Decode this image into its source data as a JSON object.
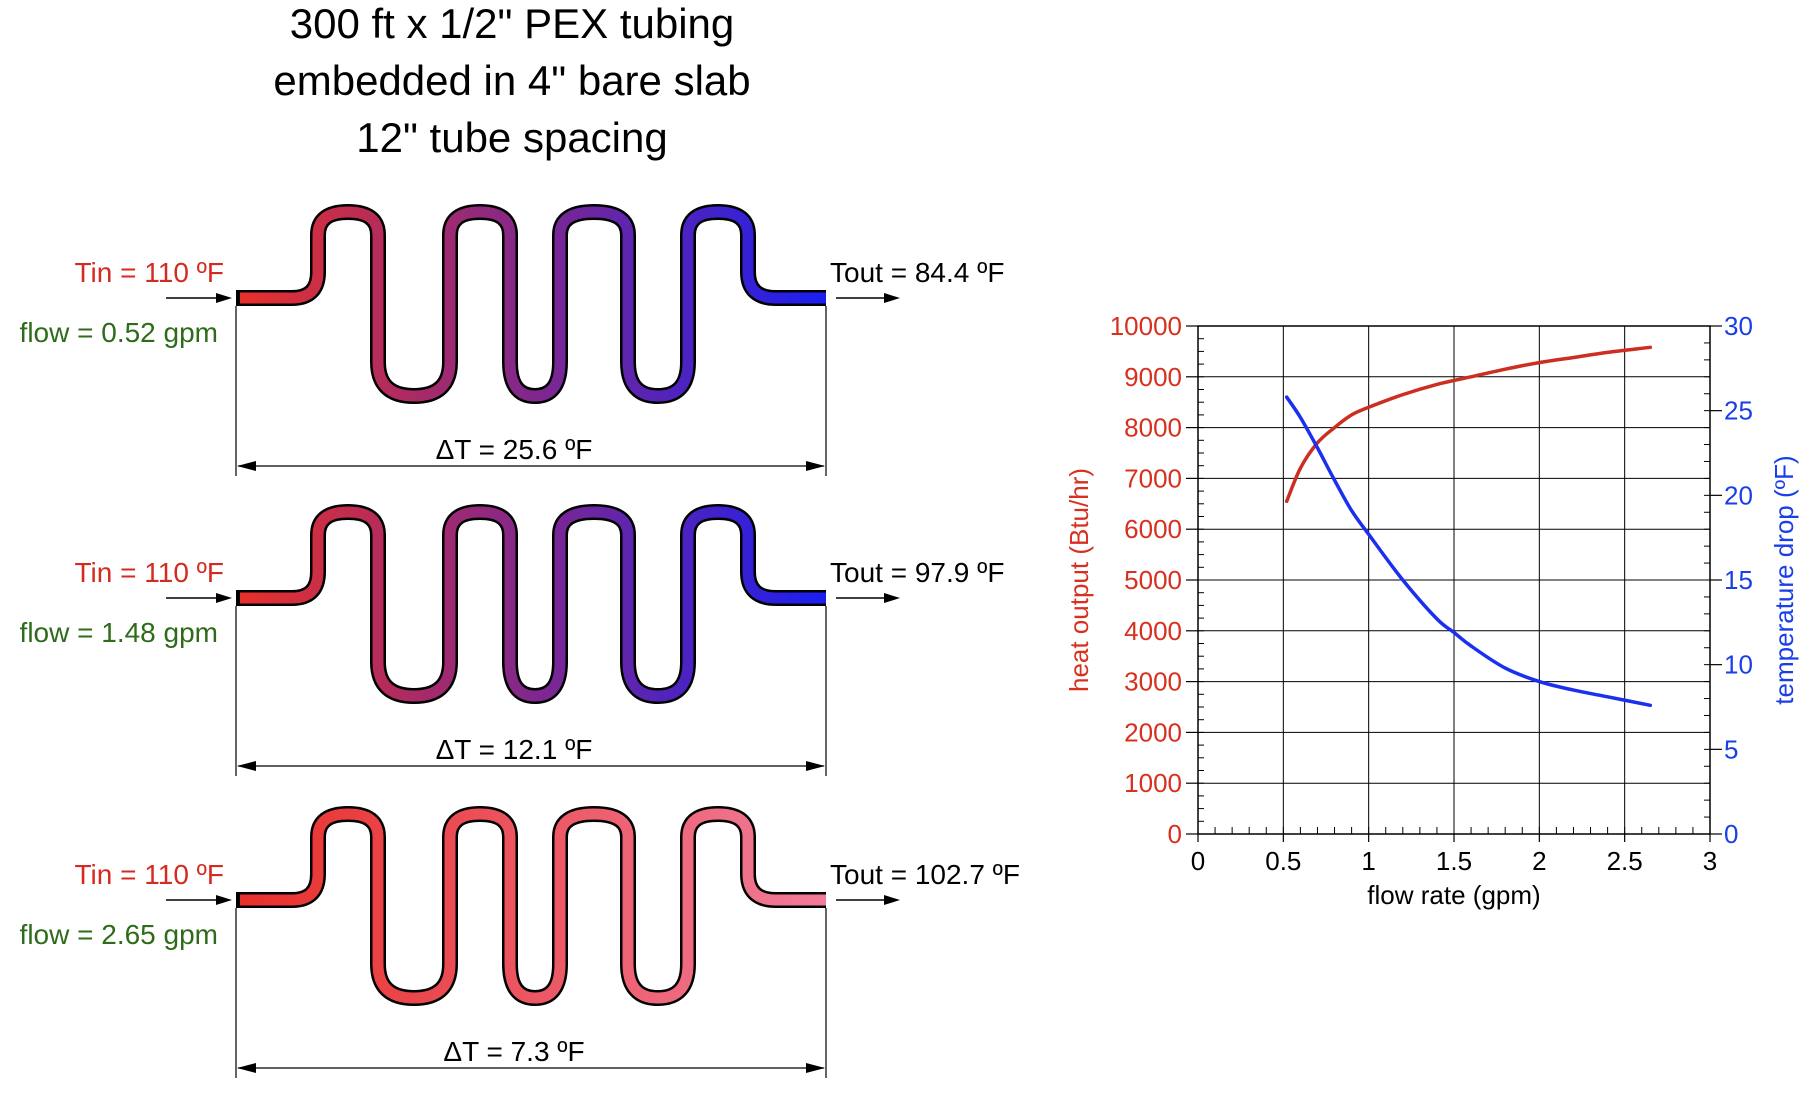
{
  "title": [
    "300 ft x 1/2\" PEX tubing",
    "embedded in 4\" bare slab",
    "12\" tube spacing"
  ],
  "colors": {
    "hot": "#e8302a",
    "inlet_label": "#d42a20",
    "flow_label": "#2e6b1a",
    "heat_curve": "#cc2f22",
    "temp_curve": "#1a2ff0",
    "heat_axis": "#d8301f",
    "temp_axis": "#1a3ee8"
  },
  "loops": [
    {
      "tin": "Tin = 110 ºF",
      "flow": "flow = 0.52 gpm",
      "tout": "Tout = 84.4 ºF",
      "dt": "ΔT = 25.6 ºF",
      "color_start": "#e8302a",
      "color_end": "#1a1ff0"
    },
    {
      "tin": "Tin = 110 ºF",
      "flow": "flow = 1.48 gpm",
      "tout": "Tout = 97.9 ºF",
      "dt": "ΔT = 12.1 ºF",
      "color_start": "#e8302a",
      "color_end": "#1a1ff0"
    },
    {
      "tin": "Tin = 110 ºF",
      "flow": "flow = 2.65 gpm",
      "tout": "Tout = 102.7 ºF",
      "dt": "ΔT = 7.3 ºF",
      "color_start": "#e8302a",
      "color_end": "#f07c9a"
    }
  ],
  "chart_data": {
    "type": "line",
    "xlabel": "flow rate (gpm)",
    "ylabel": "heat output (Btu/hr)",
    "y2label": "temperature drop (ºF)",
    "xlim": [
      0,
      3
    ],
    "ylim": [
      0,
      10000
    ],
    "y2lim": [
      0,
      30
    ],
    "x_ticks": [
      "0",
      "0.5",
      "1",
      "1.5",
      "2",
      "2.5",
      "3"
    ],
    "y_ticks": [
      "0",
      "1000",
      "2000",
      "3000",
      "4000",
      "5000",
      "6000",
      "7000",
      "8000",
      "9000",
      "10000"
    ],
    "y2_ticks": [
      "0",
      "5",
      "10",
      "15",
      "20",
      "25",
      "30"
    ],
    "grid": true,
    "series": [
      {
        "axis": "left",
        "color": "#cc2f22",
        "x": [
          0.52,
          0.6,
          0.7,
          0.8,
          0.9,
          1.0,
          1.2,
          1.4,
          1.6,
          1.8,
          2.0,
          2.2,
          2.4,
          2.65
        ],
        "y": [
          6550,
          7200,
          7700,
          8000,
          8250,
          8400,
          8650,
          8850,
          9000,
          9150,
          9280,
          9380,
          9480,
          9580
        ]
      },
      {
        "axis": "right",
        "color": "#1a2ff0",
        "x": [
          0.52,
          0.6,
          0.7,
          0.8,
          0.9,
          1.0,
          1.2,
          1.4,
          1.5,
          1.6,
          1.8,
          2.0,
          2.2,
          2.4,
          2.65
        ],
        "y": [
          25.8,
          24.6,
          22.8,
          20.9,
          19.1,
          17.7,
          15.0,
          12.7,
          11.9,
          11.1,
          9.8,
          9.0,
          8.5,
          8.1,
          7.6
        ]
      }
    ]
  }
}
